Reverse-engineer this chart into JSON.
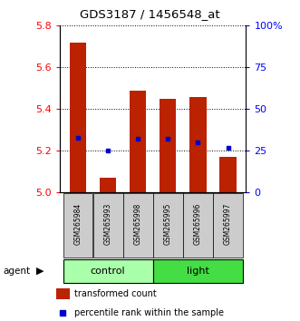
{
  "title": "GDS3187 / 1456548_at",
  "samples": [
    "GSM265984",
    "GSM265993",
    "GSM265998",
    "GSM265995",
    "GSM265996",
    "GSM265997"
  ],
  "transformed_count": [
    5.72,
    5.07,
    5.49,
    5.45,
    5.46,
    5.17
  ],
  "percentile_rank": [
    33,
    25,
    32,
    32,
    30,
    27
  ],
  "ylim": [
    5.0,
    5.8
  ],
  "yticks_left": [
    5.0,
    5.2,
    5.4,
    5.6,
    5.8
  ],
  "yticks_right": [
    0,
    25,
    50,
    75,
    100
  ],
  "bar_color": "#bb2200",
  "dot_color": "#0000cc",
  "control_color": "#aaffaa",
  "light_color": "#44dd44",
  "sample_bg_color": "#cccccc",
  "bar_width": 0.55,
  "base_value": 5.0,
  "legend_bar_label": "transformed count",
  "legend_dot_label": "percentile rank within the sample"
}
